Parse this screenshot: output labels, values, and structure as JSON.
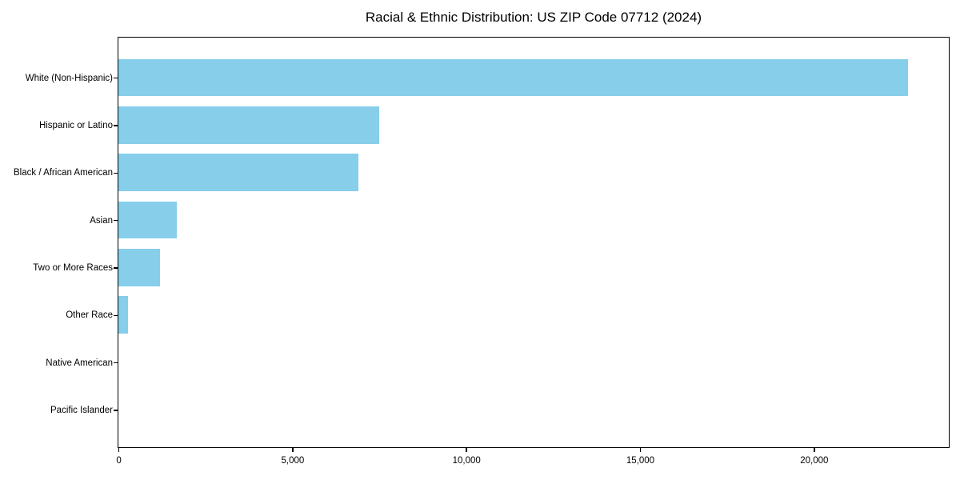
{
  "chart_data": {
    "type": "bar",
    "orientation": "horizontal",
    "title": "Racial & Ethnic Distribution: US ZIP Code 07712 (2024)",
    "categories": [
      "White (Non-Hispanic)",
      "Hispanic or Latino",
      "Black / African American",
      "Asian",
      "Two or More Races",
      "Other Race",
      "Native American",
      "Pacific Islander"
    ],
    "values": [
      22720,
      7500,
      6900,
      1670,
      1200,
      280,
      0,
      0
    ],
    "xlabel": "",
    "ylabel": "",
    "xlim": [
      0,
      23856
    ],
    "x_ticks": [
      0,
      5000,
      10000,
      15000,
      20000
    ],
    "x_tick_labels": [
      "0",
      "5,000",
      "10,000",
      "15,000",
      "20,000"
    ],
    "bar_color": "#87CEEB",
    "spine_color": "#000000",
    "text_color": "#000000",
    "background_color": "#ffffff",
    "grid": false,
    "legend": false
  }
}
